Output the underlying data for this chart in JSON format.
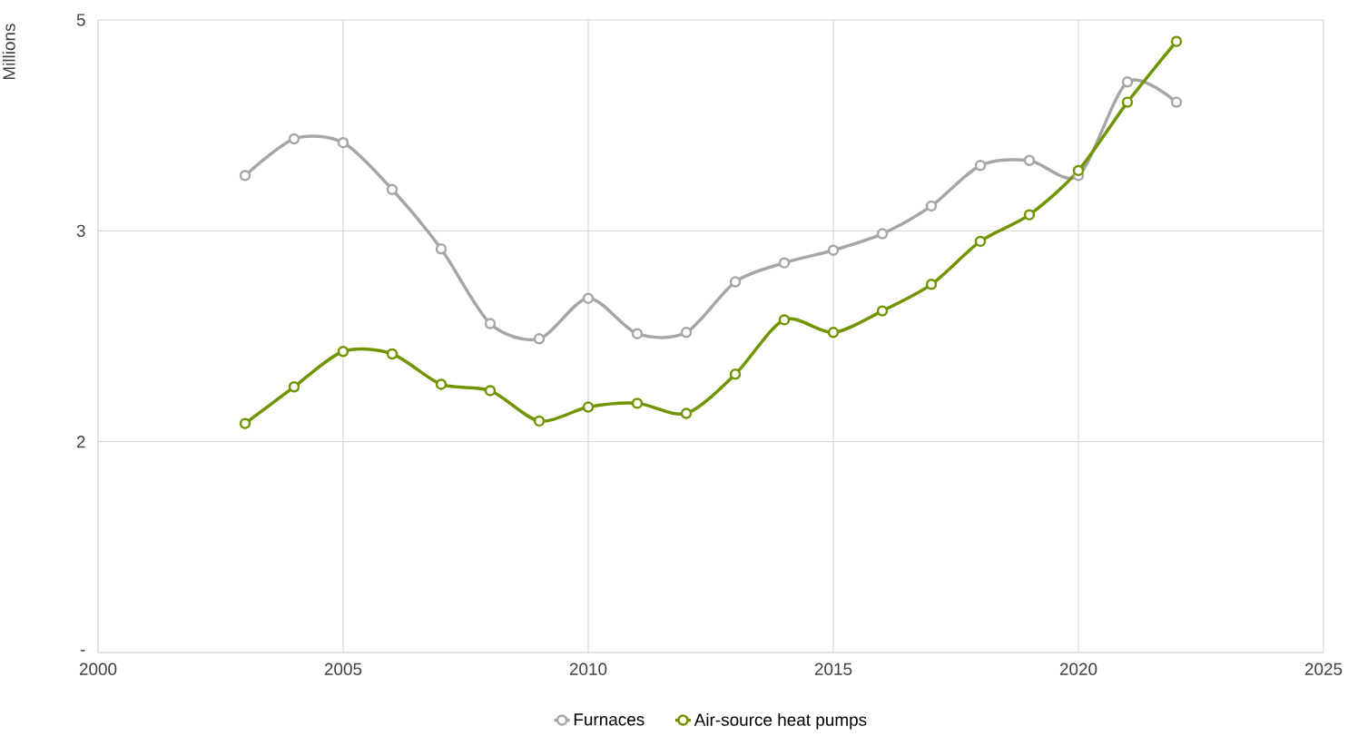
{
  "chart_data": {
    "type": "line",
    "ylabel": "Millions",
    "x": [
      2003,
      2004,
      2005,
      2006,
      2007,
      2008,
      2009,
      2010,
      2011,
      2012,
      2013,
      2014,
      2015,
      2016,
      2017,
      2018,
      2019,
      2020,
      2021,
      2022
    ],
    "series": [
      {
        "name": "Furnaces",
        "color": "#a6a6a6",
        "values": [
          3.77,
          4.06,
          4.03,
          3.66,
          3.19,
          2.6,
          2.48,
          2.8,
          2.52,
          2.53,
          2.93,
          3.08,
          3.18,
          3.31,
          3.53,
          3.85,
          3.89,
          3.77,
          4.51,
          4.35
        ]
      },
      {
        "name": "Air-source heat pumps",
        "color": "#6f9500",
        "values": [
          1.81,
          2.1,
          2.38,
          2.36,
          2.12,
          2.07,
          1.83,
          1.94,
          1.97,
          1.89,
          2.2,
          2.63,
          2.53,
          2.7,
          2.91,
          3.25,
          3.46,
          3.81,
          4.35,
          4.83
        ]
      }
    ],
    "xlim": [
      2000,
      2025
    ],
    "xticks": [
      2000,
      2005,
      2010,
      2015,
      2020,
      2025
    ],
    "ylim": [
      0,
      5
    ],
    "yticks": [
      {
        "value": 0,
        "label": "-"
      },
      {
        "value": 1.6667,
        "label": "2"
      },
      {
        "value": 3.3333,
        "label": "3"
      },
      5
    ],
    "grid": true,
    "legend": "bottom",
    "marker": "circle",
    "line_style": "solid"
  }
}
